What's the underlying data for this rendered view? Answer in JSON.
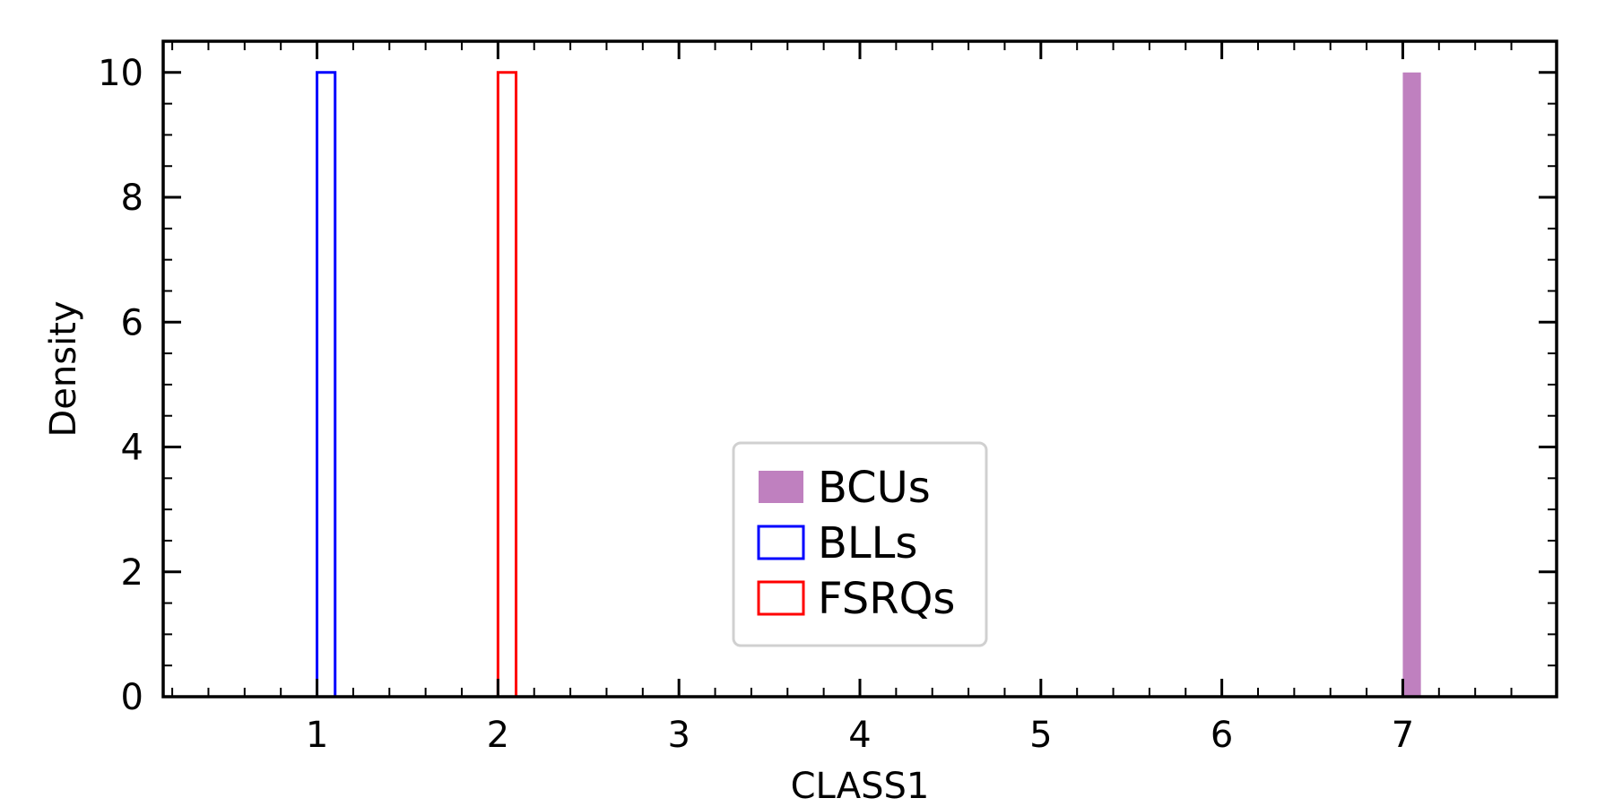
{
  "chart_data": {
    "type": "bar",
    "title": "",
    "xlabel": "CLASS1",
    "ylabel": "Density",
    "xlim": [
      0.15,
      7.85
    ],
    "ylim": [
      0,
      10.5
    ],
    "xticks": [
      1,
      2,
      3,
      4,
      5,
      6,
      7
    ],
    "yticks": [
      0,
      2,
      4,
      6,
      8,
      10
    ],
    "grid": false,
    "legend_position": "center",
    "series": [
      {
        "name": "BCUs",
        "style": "filled",
        "color": "#bf80bf",
        "bins": [
          {
            "x0": 7.0,
            "x1": 7.1,
            "value": 10
          }
        ]
      },
      {
        "name": "BLLs",
        "style": "outline",
        "color": "#0000ff",
        "bins": [
          {
            "x0": 1.0,
            "x1": 1.1,
            "value": 10
          }
        ]
      },
      {
        "name": "FSRQs",
        "style": "outline",
        "color": "#ff0000",
        "bins": [
          {
            "x0": 2.0,
            "x1": 2.1,
            "value": 10
          }
        ]
      }
    ]
  }
}
